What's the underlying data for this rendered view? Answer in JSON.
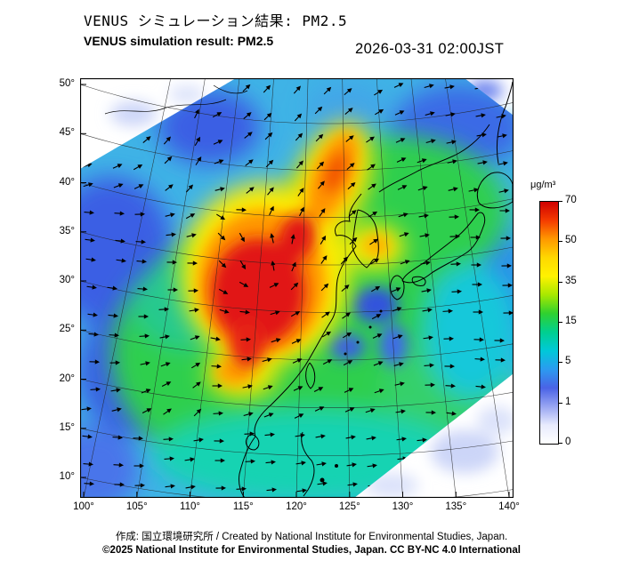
{
  "header": {
    "title_jp": "VENUS シミュレーション結果: PM2.5",
    "title_en": "VENUS simulation result: PM2.5",
    "timestamp": "2026-03-31 02:00JST"
  },
  "map": {
    "lat_ticks": [
      "50°",
      "45°",
      "40°",
      "35°",
      "30°",
      "25°",
      "20°",
      "15°",
      "10°"
    ],
    "lon_ticks": [
      "100°",
      "105°",
      "110°",
      "115°",
      "120°",
      "125°",
      "130°",
      "135°",
      "140°"
    ]
  },
  "colorbar": {
    "unit": "μg/m³",
    "ticks": [
      "70",
      "50",
      "35",
      "15",
      "5",
      "1",
      "0"
    ],
    "gradient": [
      "#cf0000",
      "#f43b00",
      "#ff9800",
      "#ffd800",
      "#fff200",
      "#a8e800",
      "#2fd12f",
      "#00cf8f",
      "#00c9d8",
      "#2b9bf0",
      "#4a63e6",
      "#98a5f2",
      "#e8ebfd",
      "#ffffff"
    ]
  },
  "footer": {
    "credit": "作成: 国立環境研究所 / Created by National Institute for Environmental Studies, Japan.",
    "copyright": "©2025 National Institute for Environmental Studies, Japan. CC BY-NC 4.0 International"
  },
  "chart_data": {
    "type": "heatmap",
    "title": "VENUS simulation result: PM2.5",
    "datetime": "2026-03-31 02:00JST",
    "unit": "μg/m³",
    "scale_levels": [
      0,
      1,
      5,
      15,
      35,
      50,
      70
    ],
    "lon_range": [
      100,
      140
    ],
    "lat_range": [
      10,
      50
    ],
    "overlay": "wind vectors"
  }
}
